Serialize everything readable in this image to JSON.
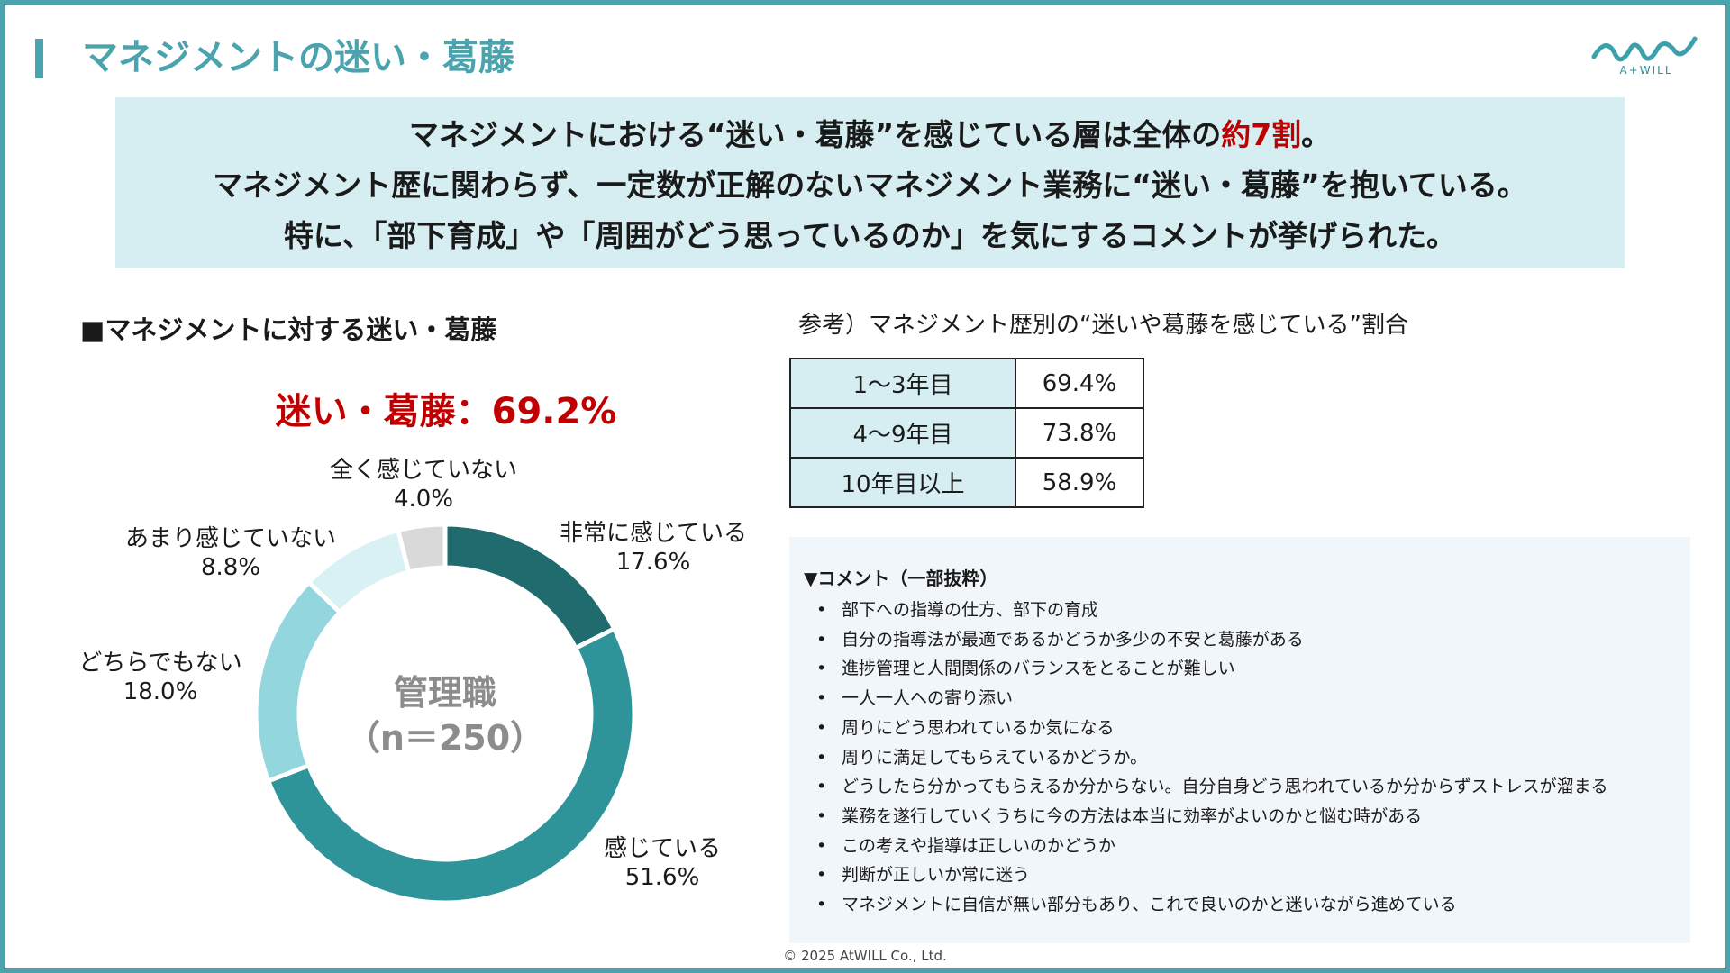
{
  "page_title": "マネジメントの迷い・葛藤",
  "logo_text": "A+WILL",
  "summary": {
    "line1_before": "マネジメントにおける“迷い・葛藤”を感じている層は全体の",
    "line1_highlight": "約7割",
    "line1_after": "。",
    "line2": "マネジメント歴に関わらず、一定数が正解のないマネジメント業務に“迷い・葛藤”を抱いている。",
    "line3": "特に、「部下育成」や「周囲がどう思っているのか」を気にするコメントが挙げられた。"
  },
  "colors": {
    "accent": "#4aa3ad",
    "highlight_red": "#c00000",
    "summary_bg": "#d6eef2",
    "comments_bg": "#f0f6fa"
  },
  "chart_data": {
    "type": "pie",
    "title": "■マネジメントに対する迷い・葛藤",
    "headline": "迷い・葛藤：69.2%",
    "center_label_line1": "管理職",
    "center_label_line2": "（n＝250）",
    "categories": [
      "非常に感じている",
      "感じている",
      "どちらでもない",
      "あまり感じていない",
      "全く感じていない"
    ],
    "values": [
      17.6,
      51.6,
      18.0,
      8.8,
      4.0
    ],
    "value_labels": [
      "17.6%",
      "51.6%",
      "18.0%",
      "8.8%",
      "4.0%"
    ],
    "colors": [
      "#1f6b6e",
      "#2f9499",
      "#93d6de",
      "#d9f0f4",
      "#d9d9d9"
    ],
    "donut": true
  },
  "reference": {
    "title": "参考）マネジメント歴別の“迷いや葛藤を感じている”割合",
    "rows": [
      {
        "label": "1～3年目",
        "value": "69.4%"
      },
      {
        "label": "4～9年目",
        "value": "73.8%"
      },
      {
        "label": "10年目以上",
        "value": "58.9%"
      }
    ]
  },
  "comments": {
    "heading": "▼コメント（一部抜粋）",
    "bullet": "•",
    "items": [
      "部下への指導の仕方、部下の育成",
      "自分の指導法が最適であるかどうか多少の不安と葛藤がある",
      "進捗管理と人間関係のバランスをとることが難しい",
      "一人一人への寄り添い",
      "周りにどう思われているか気になる",
      "周りに満足してもらえているかどうか。",
      "どうしたら分かってもらえるか分からない。自分自身どう思われているか分からずストレスが溜まる",
      "業務を遂行していくうちに今の方法は本当に効率がよいのかと悩む時がある",
      "この考えや指導は正しいのかどうか",
      "判断が正しいか常に迷う",
      "マネジメントに自信が無い部分もあり、これで良いのかと迷いながら進めている"
    ]
  },
  "footer": "© 2025 AtWILL  Co., Ltd."
}
